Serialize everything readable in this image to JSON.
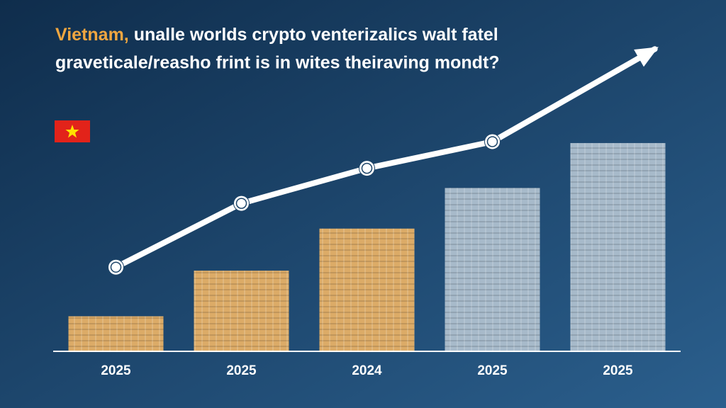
{
  "chart_data": {
    "type": "bar",
    "title_highlight": "Vietnam,",
    "title_line1": "unalle worlds crypto venterizalics  walt fatel",
    "title_line2": "graveticale/reasho frint is in wites theiraving mondt?",
    "categories": [
      "2025",
      "2025",
      "2024",
      "2025",
      "2025"
    ],
    "values": [
      49,
      114,
      174,
      232,
      296
    ],
    "colors": [
      "#d9a45a",
      "#d9a45a",
      "#d9a45a",
      "#9fb4c6",
      "#9fb4c6"
    ],
    "trend": {
      "values": [
        119,
        210,
        260,
        298,
        400
      ],
      "color": "#ffffff"
    },
    "ylim": [
      0,
      500
    ]
  }
}
